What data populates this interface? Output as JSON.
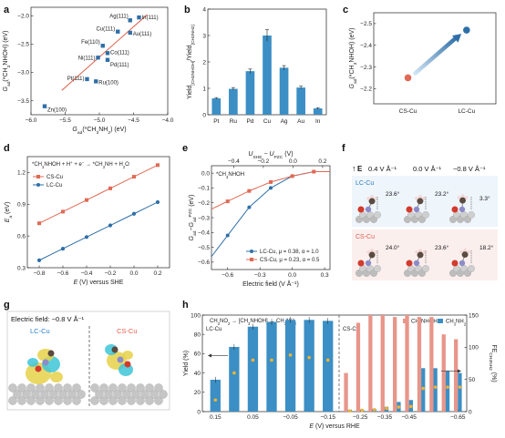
{
  "panels": {
    "a": "a",
    "b": "b",
    "c": "c",
    "d": "d",
    "e": "e",
    "f": "f",
    "g": "g",
    "h": "h"
  },
  "colors": {
    "blue": "#2f6fa8",
    "red": "#e06a55",
    "bar_blue": "#3b8fc4",
    "bar_red": "#e8958a",
    "dot_yellow": "#f2b233",
    "dark": "#333333",
    "lc_text": "#2f7fc1",
    "cs_text": "#e0604e"
  },
  "chart_data": [
    {
      "panel": "a",
      "type": "scatter",
      "xlabel": "G_ad(*CH3NH2) (eV)",
      "ylabel": "G_ad(*CH3NHOH) (eV)",
      "xlim": [
        -6.0,
        -4.0
      ],
      "ylim": [
        -3.75,
        -1.85
      ],
      "xticks": [
        -6.0,
        -5.5,
        -5.0,
        -4.5,
        -4.0
      ],
      "yticks": [
        -3.5,
        -3.0,
        -2.5,
        -2.0
      ],
      "points": [
        {
          "label": "Ag(111)",
          "x": -4.55,
          "y": -2.08
        },
        {
          "label": "In(111)",
          "x": -4.42,
          "y": -2.03
        },
        {
          "label": "Cu(111)",
          "x": -4.73,
          "y": -2.28
        },
        {
          "label": "Au(111)",
          "x": -4.55,
          "y": -2.3
        },
        {
          "label": "Fe(110)",
          "x": -4.95,
          "y": -2.53
        },
        {
          "label": "Co(111)",
          "x": -4.88,
          "y": -2.66
        },
        {
          "label": "Ni(111)",
          "x": -5.02,
          "y": -2.74
        },
        {
          "label": "Pd(111)",
          "x": -4.88,
          "y": -2.78
        },
        {
          "label": "Pt(111)",
          "x": -5.18,
          "y": -3.12
        },
        {
          "label": "Ru(100)",
          "x": -5.05,
          "y": -3.16
        },
        {
          "label": "Zn(100)",
          "x": -5.8,
          "y": -3.6
        }
      ],
      "fit_line": {
        "x": [
          -5.55,
          -4.3
        ],
        "y": [
          -3.32,
          -1.98
        ]
      }
    },
    {
      "panel": "b",
      "type": "bar",
      "ylabel": "Yield[CH3NHOH] / Yield[CH3NH2]",
      "ylim": [
        0,
        4
      ],
      "yticks": [
        0,
        1,
        2,
        3,
        4
      ],
      "categories": [
        "Pt",
        "Ru",
        "Pd",
        "Cu",
        "Ag",
        "Au",
        "In"
      ],
      "values": [
        0.62,
        0.98,
        1.65,
        3.0,
        1.78,
        1.03,
        0.24
      ],
      "errors": [
        0.03,
        0.05,
        0.08,
        0.22,
        0.08,
        0.05,
        0.03
      ]
    },
    {
      "panel": "c",
      "type": "scatter",
      "ylabel": "G_ad(*CH3NHOH) (eV)",
      "categories": [
        "CS-Cu",
        "LC-Cu"
      ],
      "ylim": [
        -2.13,
        -2.55
      ],
      "yticks": [
        -2.5,
        -2.4,
        -2.3,
        -2.2
      ],
      "values": [
        -2.25,
        -2.47
      ]
    },
    {
      "panel": "d",
      "type": "line",
      "annotation": "*CH3NHOH + H+ + e- → *CH3NH + H2O",
      "xlabel": "E (V) versus SHE",
      "ylabel": "Ea (eV)",
      "x": [
        -0.8,
        -0.7,
        -0.6,
        -0.5,
        -0.4,
        -0.3,
        -0.2,
        -0.1,
        0.0,
        0.1,
        0.2
      ],
      "xticks": [
        -0.8,
        -0.6,
        -0.4,
        -0.2,
        0.0,
        0.2
      ],
      "ylim": [
        0.3,
        1.35
      ],
      "yticks": [
        0.3,
        0.6,
        0.9,
        1.2
      ],
      "series": [
        {
          "name": "CS-Cu",
          "values": [
            0.72,
            0.775,
            0.83,
            0.885,
            0.94,
            0.995,
            1.05,
            1.105,
            1.16,
            1.215,
            1.27
          ]
        },
        {
          "name": "LC-Cu",
          "values": [
            0.37,
            0.425,
            0.48,
            0.535,
            0.59,
            0.645,
            0.7,
            0.755,
            0.81,
            0.865,
            0.92
          ]
        }
      ]
    },
    {
      "panel": "e",
      "type": "line",
      "annotation": "*CH3NHOH",
      "xlabel": "Electric field (V Å⁻¹)",
      "top_xlabel": "U_SHE − U_PZC (V)",
      "ylabel": "G_ad − G_ad^PZC (eV)",
      "xlim": [
        -0.75,
        0.35
      ],
      "xticks": [
        -0.6,
        -0.3,
        0.0,
        0.3
      ],
      "top_xticks": [
        -0.4,
        -0.2,
        0.0,
        0.2
      ],
      "ylim": [
        -0.65,
        0.05
      ],
      "yticks": [
        -0.6,
        -0.5,
        -0.4,
        -0.3,
        -0.2,
        -0.1,
        0.0
      ],
      "series": [
        {
          "name": "LC-Cu, μ = 0.38, α = 1.0",
          "x": [
            -0.6,
            -0.4,
            -0.2,
            0.0,
            0.2
          ],
          "values": [
            -0.42,
            -0.23,
            -0.1,
            -0.02,
            0.01
          ]
        },
        {
          "name": "CS-Cu, μ = 0.23, α = 0.5",
          "x": [
            -0.6,
            -0.4,
            -0.2,
            0.0,
            0.2
          ],
          "values": [
            -0.19,
            -0.12,
            -0.06,
            -0.02,
            0.01
          ]
        }
      ]
    },
    {
      "panel": "h",
      "type": "bar",
      "annotation": "CH3NO2 → [CH3NHOH] → CH3NH2",
      "xlabel": "E (V) versus RHE",
      "ylabel": "Yield (%)",
      "y2label": "FE CH3NH2 (%)",
      "ylim": [
        0,
        100
      ],
      "yticks": [
        0,
        20,
        40,
        60,
        80,
        100
      ],
      "y2ticks": [
        0,
        50,
        100,
        150
      ],
      "xticks": [
        "0.15",
        "0.05",
        "-0.05",
        "-0.15",
        "-0.25",
        "-0.35",
        "-0.45",
        "-0.65"
      ],
      "lc": {
        "label": "LC-Cu",
        "potentials": [
          0.15,
          0.1,
          0.05,
          0.0,
          -0.05,
          -0.1,
          -0.15
        ],
        "ch3nh2_yield": [
          33,
          67,
          88,
          93,
          95,
          95,
          94
        ],
        "fe": [
          18,
          60,
          80,
          80,
          88,
          84,
          80
        ]
      },
      "cs": {
        "label": "CS-Cu",
        "potentials": [
          -0.2,
          -0.25,
          -0.3,
          -0.35,
          -0.4,
          -0.45,
          -0.5,
          -0.55,
          -0.6,
          -0.65
        ],
        "ch3nhoh_yield": [
          40,
          92,
          100,
          100,
          98,
          100,
          98,
          98,
          80,
          75
        ],
        "ch3nh2_yield": [
          2,
          2,
          3,
          5,
          10,
          12,
          45,
          45,
          42,
          40
        ],
        "fe": [
          1,
          2,
          3,
          5,
          7,
          8,
          36,
          38,
          38,
          38
        ]
      },
      "legend": [
        "CH3NHOH",
        "CH3NH2"
      ]
    }
  ],
  "panel_f": {
    "fields": [
      "0.4 V Å⁻¹",
      "0.0 V Å⁻¹",
      "−0.8 V Å⁻¹"
    ],
    "e_label": "E",
    "lc_label": "LC-Cu",
    "cs_label": "CS-Cu",
    "lc_angles": [
      "23.6°",
      "23.2°",
      "3.3°"
    ],
    "cs_angles": [
      "24.0°",
      "23.6°",
      "18.2°"
    ]
  },
  "panel_g": {
    "title": "Electric field: −0.8 V Å⁻¹",
    "lc_label": "LC-Cu",
    "cs_label": "CS-Cu"
  }
}
